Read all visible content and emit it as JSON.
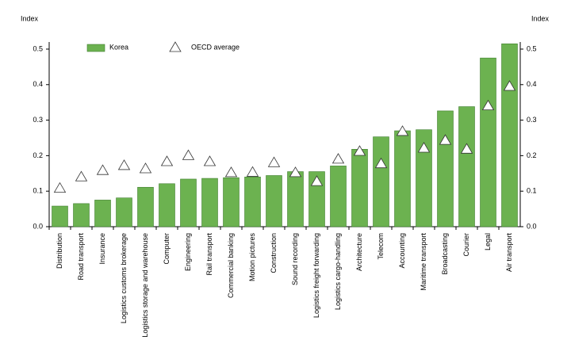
{
  "chart_data": {
    "type": "bar",
    "y_label": "Index",
    "y2_label": "Index",
    "categories": [
      "Distribution",
      "Road transport",
      "Insurance",
      "Logistics customs brokerage",
      "Logistics storage and warehouse",
      "Computer",
      "Engineering",
      "Rail transport",
      "Commercial banking",
      "Motion pictures",
      "Construction",
      "Sound recording",
      "Logistics freight forwarding",
      "Logistics cargo-handling",
      "Architecture",
      "Telecom",
      "Accounting",
      "Maritime transport",
      "Broadcasting",
      "Courier",
      "Legal",
      "Air transport"
    ],
    "series": [
      {
        "name": "Korea",
        "kind": "bar",
        "color": "#6cb250",
        "values": [
          0.058,
          0.065,
          0.075,
          0.081,
          0.111,
          0.121,
          0.134,
          0.136,
          0.138,
          0.14,
          0.144,
          0.155,
          0.155,
          0.171,
          0.218,
          0.253,
          0.27,
          0.273,
          0.326,
          0.338,
          0.475,
          0.515
        ]
      },
      {
        "name": "OECD average",
        "kind": "triangle",
        "color": "#ffffff",
        "values": [
          0.108,
          0.14,
          0.158,
          0.172,
          0.163,
          0.183,
          0.2,
          0.183,
          0.152,
          0.153,
          0.18,
          0.152,
          0.127,
          0.19,
          0.212,
          0.177,
          0.268,
          0.221,
          0.243,
          0.218,
          0.34,
          0.395
        ]
      }
    ],
    "ylim": [
      0,
      0.52
    ],
    "yticks": [
      {
        "value": 0,
        "label": "0.0"
      },
      0.1,
      0.2,
      0.3,
      0.4,
      0.5
    ],
    "y2lim": [
      0,
      0.52
    ],
    "y2ticks": [
      {
        "value": 0,
        "label": "0.0"
      },
      0.1,
      0.2,
      0.3,
      0.4,
      0.5
    ]
  }
}
